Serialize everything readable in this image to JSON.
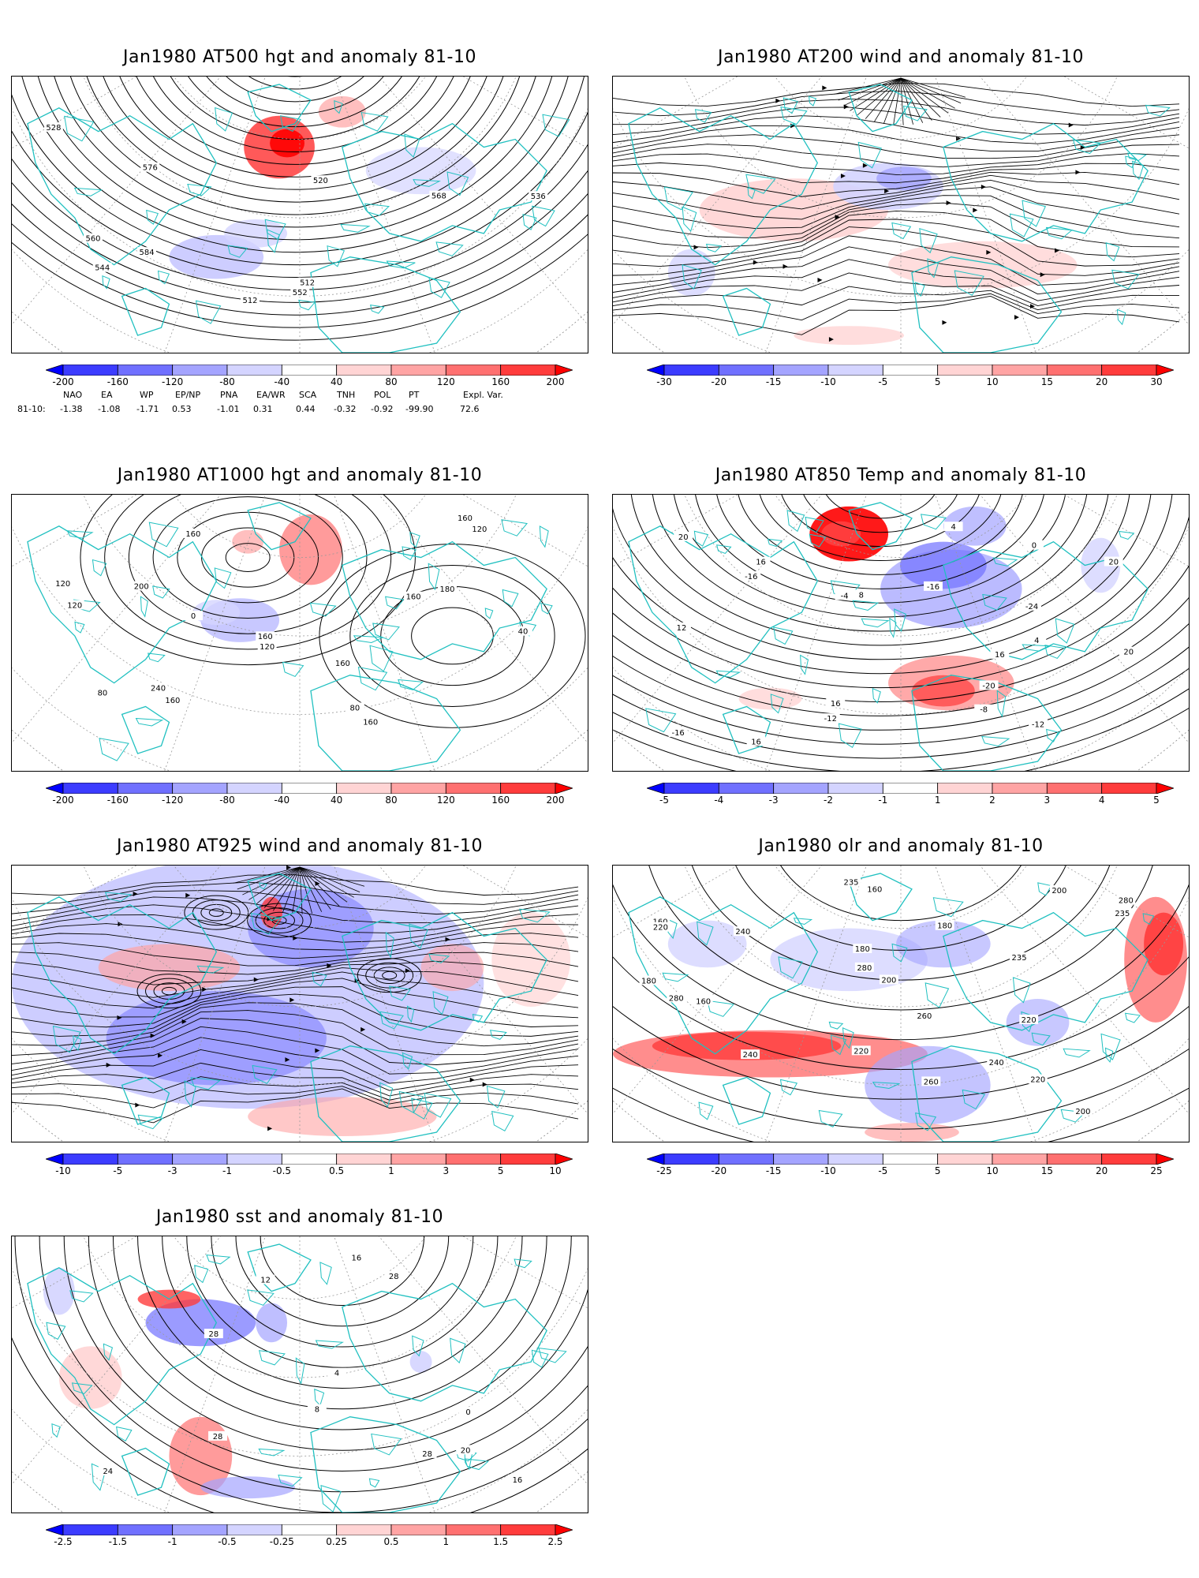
{
  "panels": [
    {
      "title": "Jan1980 AT500 hgt and anomaly 81-10",
      "levels": [
        "-200",
        "-160",
        "-120",
        "-80",
        "-40",
        "40",
        "80",
        "120",
        "160",
        "200"
      ],
      "contour_labels": [
        "512",
        "512",
        "520",
        "528",
        "536",
        "544",
        "552",
        "560",
        "568",
        "576",
        "584"
      ]
    },
    {
      "title": "Jan1980 AT200 wind and anomaly 81-10",
      "levels": [
        "-30",
        "-20",
        "-15",
        "-10",
        "-5",
        "5",
        "10",
        "15",
        "20",
        "30"
      ],
      "contour_labels": []
    },
    {
      "title": "Jan1980 AT1000 hgt and anomaly 81-10",
      "levels": [
        "-200",
        "-160",
        "-120",
        "-80",
        "-40",
        "40",
        "80",
        "120",
        "160",
        "200"
      ],
      "contour_labels": [
        "160",
        "160",
        "240",
        "200",
        "180",
        "80",
        "40",
        "0",
        "120",
        "160",
        "80",
        "120",
        "160",
        "160",
        "160",
        "160",
        "120",
        "120"
      ]
    },
    {
      "title": "Jan1980 AT850 Temp and anomaly 81-10",
      "levels": [
        "-5",
        "-4",
        "-3",
        "-2",
        "-1",
        "1",
        "2",
        "3",
        "4",
        "5"
      ],
      "contour_labels": [
        "-24",
        "-20",
        "-16",
        "-12",
        "-16",
        "-12",
        "-8",
        "-4",
        "0",
        "4",
        "-16",
        "4",
        "8",
        "12",
        "16",
        "20",
        "16",
        "20",
        "16",
        "16",
        "20"
      ]
    },
    {
      "title": "Jan1980 AT925 wind and anomaly 81-10",
      "levels": [
        "-10",
        "-5",
        "-3",
        "-1",
        "-0.5",
        "0.5",
        "1",
        "3",
        "5",
        "10"
      ],
      "contour_labels": []
    },
    {
      "title": "Jan1980 olr and anomaly 81-10",
      "levels": [
        "-25",
        "-20",
        "-15",
        "-10",
        "-5",
        "5",
        "10",
        "15",
        "20",
        "25"
      ],
      "contour_labels": [
        "180",
        "160",
        "235",
        "280",
        "160",
        "200",
        "160",
        "180",
        "180",
        "200",
        "200",
        "220",
        "235",
        "220",
        "240",
        "240",
        "260",
        "280",
        "260",
        "220",
        "240",
        "220",
        "235",
        "280"
      ]
    },
    {
      "title": "Jan1980 sst and anomaly 81-10",
      "levels": [
        "-2.5",
        "-1.5",
        "-1",
        "-0.5",
        "-0.25",
        "0.25",
        "0.5",
        "1",
        "1.5",
        "2.5"
      ],
      "contour_labels": [
        "24",
        "0",
        "4",
        "8",
        "12",
        "16",
        "20",
        "28",
        "28",
        "28",
        "16",
        "28"
      ]
    }
  ],
  "teleconnections": {
    "headers": [
      "NAO",
      "EA",
      "WP",
      "EP/NP",
      "PNA",
      "EA/WR",
      "SCA",
      "TNH",
      "POL",
      "PT",
      "Expl. Var."
    ],
    "row_label": "81-10:",
    "values": [
      "-1.38",
      "-1.08",
      "-1.71",
      "0.53",
      "-1.01",
      "0.31",
      "0.44",
      "-0.32",
      "-0.92",
      "-99.90",
      "72.6"
    ]
  },
  "colors": {
    "map_outline": "#20c0c0",
    "contour": "#000000",
    "anom_neg_strong": "#0000ff",
    "anom_pos_strong": "#ff0000"
  }
}
